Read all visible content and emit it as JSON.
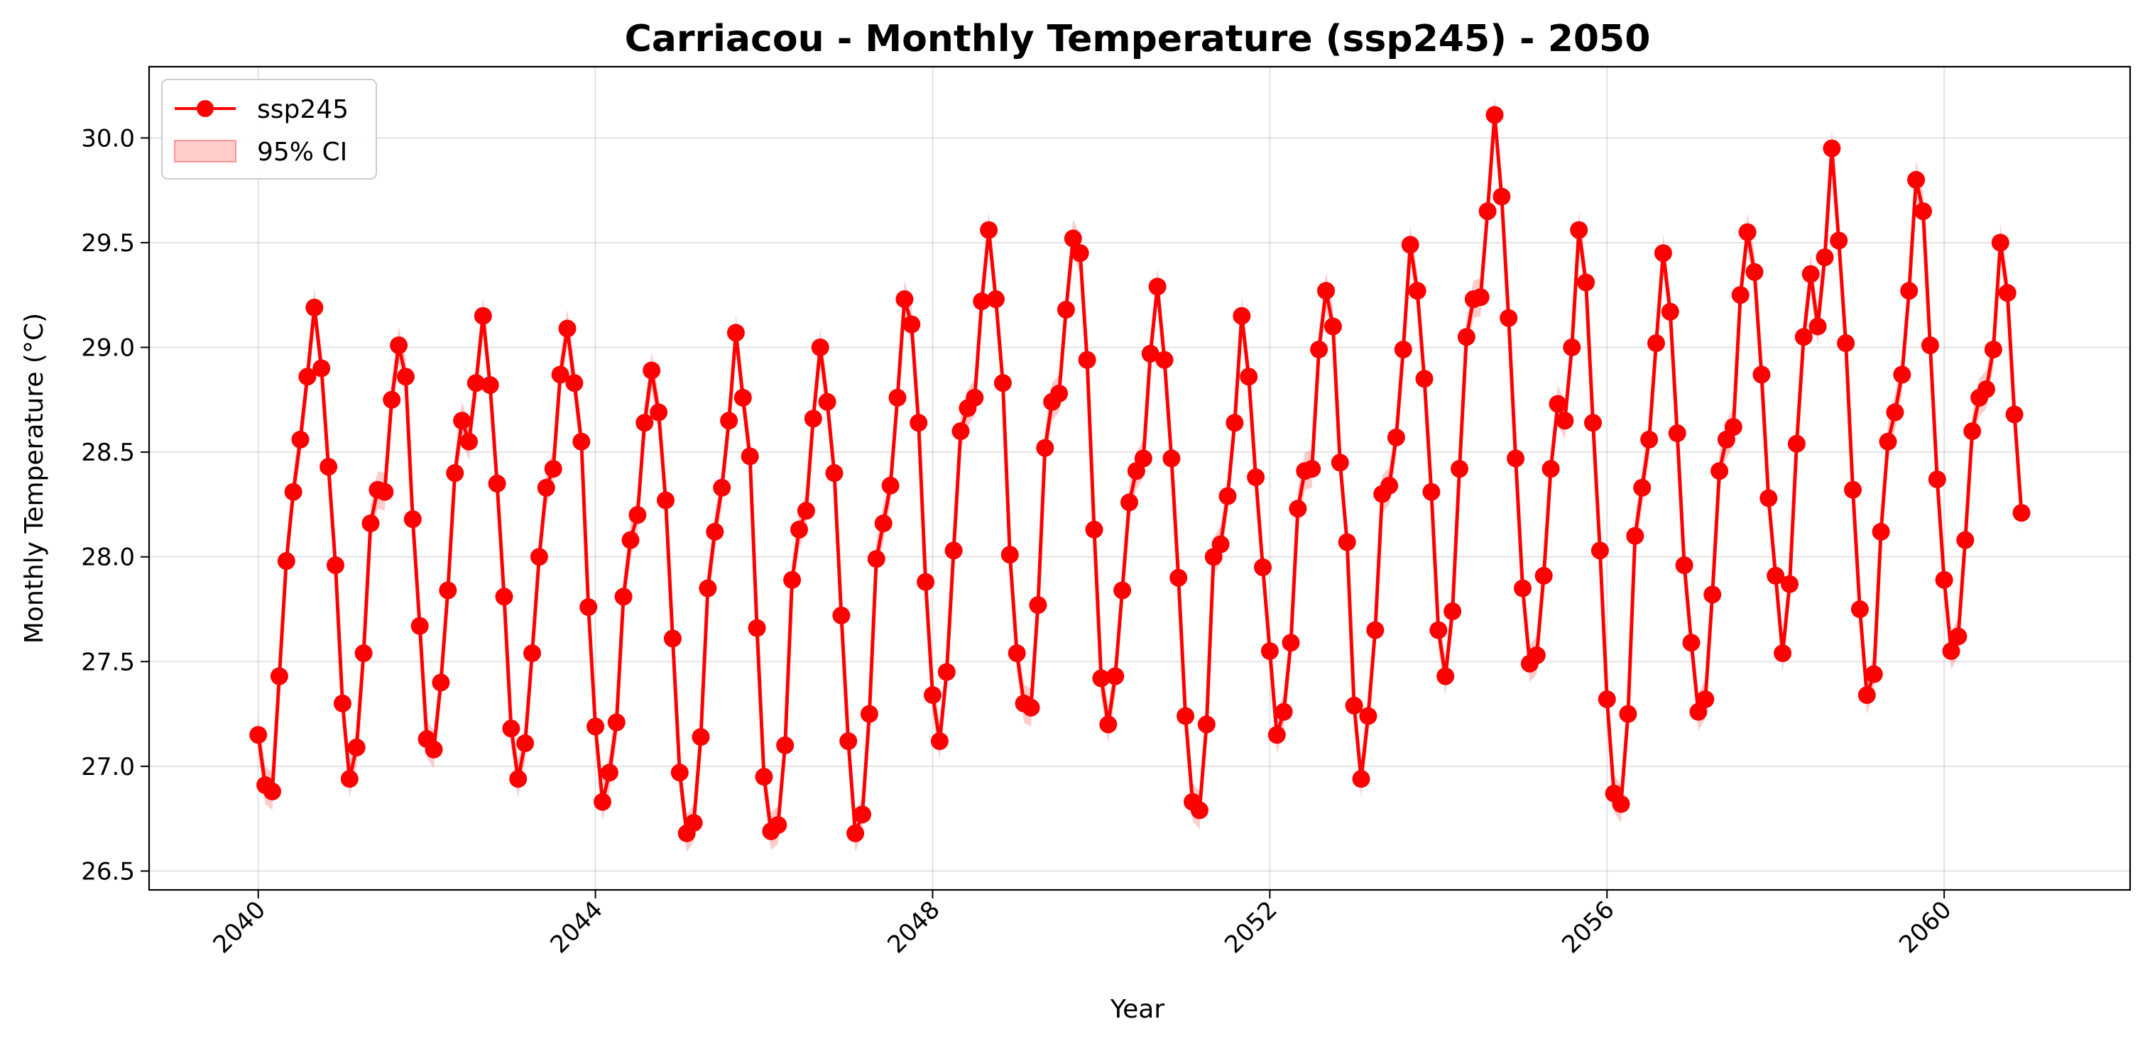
{
  "chart_data": {
    "type": "line",
    "title": "Carriacou - Monthly Temperature (ssp245) - 2050",
    "xlabel": "Year",
    "ylabel": "Monthly Temperature (°C)",
    "xlim": [
      "2038-09-15",
      "2062-03-15"
    ],
    "ylim": [
      26.41,
      30.34
    ],
    "x_ticks": [
      2040,
      2044,
      2048,
      2052,
      2056,
      2060
    ],
    "y_ticks": [
      26.5,
      27.0,
      27.5,
      28.0,
      28.5,
      29.0,
      29.5,
      30.0
    ],
    "y_tick_labels": [
      "26.5",
      "27.0",
      "27.5",
      "28.0",
      "28.5",
      "29.0",
      "29.5",
      "30.0"
    ],
    "grid": true,
    "legend_position": "upper-left",
    "legend": [
      "ssp245",
      "95% CI"
    ],
    "x_start": "2040-01",
    "x_frequency": "monthly",
    "series": [
      {
        "name": "ssp245",
        "color": "#ff0000",
        "marker": "circle",
        "values": [
          27.15,
          26.91,
          26.88,
          27.43,
          27.98,
          28.31,
          28.56,
          28.86,
          29.19,
          28.9,
          28.43,
          27.96,
          27.3,
          26.94,
          27.09,
          27.54,
          28.16,
          28.32,
          28.31,
          28.75,
          29.01,
          28.86,
          28.18,
          27.67,
          27.13,
          27.08,
          27.4,
          27.84,
          28.4,
          28.65,
          28.55,
          28.83,
          29.15,
          28.82,
          28.35,
          27.81,
          27.18,
          26.94,
          27.11,
          27.54,
          28.0,
          28.33,
          28.42,
          28.87,
          29.09,
          28.83,
          28.55,
          27.76,
          27.19,
          26.83,
          26.97,
          27.21,
          27.81,
          28.08,
          28.2,
          28.64,
          28.89,
          28.69,
          28.27,
          27.61,
          26.97,
          26.68,
          26.73,
          27.14,
          27.85,
          28.12,
          28.33,
          28.65,
          29.07,
          28.76,
          28.48,
          27.66,
          26.95,
          26.69,
          26.72,
          27.1,
          27.89,
          28.13,
          28.22,
          28.66,
          29.0,
          28.74,
          28.4,
          27.72,
          27.12,
          26.68,
          26.77,
          27.25,
          27.99,
          28.16,
          28.34,
          28.76,
          29.23,
          29.11,
          28.64,
          27.88,
          27.34,
          27.12,
          27.45,
          28.03,
          28.6,
          28.71,
          28.76,
          29.22,
          29.56,
          29.23,
          28.83,
          28.01,
          27.54,
          27.3,
          27.28,
          27.77,
          28.52,
          28.74,
          28.78,
          29.18,
          29.52,
          29.45,
          28.94,
          28.13,
          27.42,
          27.2,
          27.43,
          27.84,
          28.26,
          28.41,
          28.47,
          28.97,
          29.29,
          28.94,
          28.47,
          27.9,
          27.24,
          26.83,
          26.79,
          27.2,
          28.0,
          28.06,
          28.29,
          28.64,
          29.15,
          28.86,
          28.38,
          27.95,
          27.55,
          27.15,
          27.26,
          27.59,
          28.23,
          28.41,
          28.42,
          28.99,
          29.27,
          29.1,
          28.45,
          28.07,
          27.29,
          26.94,
          27.24,
          27.65,
          28.3,
          28.34,
          28.57,
          28.99,
          29.49,
          29.27,
          28.85,
          28.31,
          27.65,
          27.43,
          27.74,
          28.42,
          29.05,
          29.23,
          29.24,
          29.65,
          30.11,
          29.72,
          29.14,
          28.47,
          27.85,
          27.49,
          27.53,
          27.91,
          28.42,
          28.73,
          28.65,
          29.0,
          29.56,
          29.31,
          28.64,
          28.03,
          27.32,
          26.87,
          26.82,
          27.25,
          28.1,
          28.33,
          28.56,
          29.02,
          29.45,
          29.17,
          28.59,
          27.96,
          27.59,
          27.26,
          27.32,
          27.82,
          28.41,
          28.56,
          28.62,
          29.25,
          29.55,
          29.36,
          28.87,
          28.28,
          27.91,
          27.54,
          27.87,
          28.54,
          29.05,
          29.35,
          29.1,
          29.43,
          29.95,
          29.51,
          29.02,
          28.32,
          27.75,
          27.34,
          27.44,
          28.12,
          28.55,
          28.69,
          28.87,
          29.27,
          29.8,
          29.65,
          29.01,
          28.37,
          27.89,
          27.55,
          27.62,
          28.08,
          28.6,
          28.76,
          28.8,
          28.99,
          29.5,
          29.26,
          28.68,
          28.21
        ]
      }
    ],
    "ci_halfwidth": 0.09
  }
}
